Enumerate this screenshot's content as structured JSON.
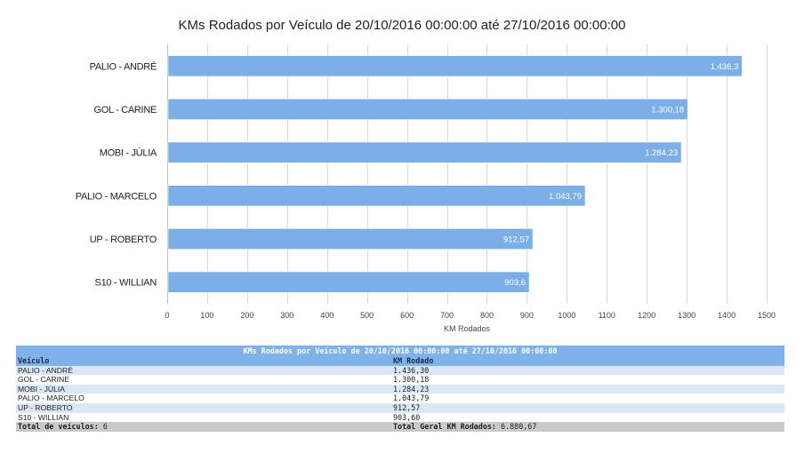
{
  "chart_data": {
    "type": "bar",
    "orientation": "horizontal",
    "title": "KMs Rodados por Veículo de 20/10/2016 00:00:00 até 27/10/2016 00:00:00",
    "categories": [
      "PALIO - ANDRÉ",
      "GOL - CARINE",
      "MOBI - JÚLIA",
      "PALIO - MARCELO",
      "UP - ROBERTO",
      "S10 - WILLIAN"
    ],
    "values": [
      1436.3,
      1300.18,
      1284.23,
      1043.79,
      912.57,
      903.6
    ],
    "data_labels": [
      "1.436,3",
      "1.300,18",
      "1.284,23",
      "1.043,79",
      "912,57",
      "903,6"
    ],
    "xlabel": "KM Rodados",
    "ylabel": "",
    "xlim": [
      0,
      1500
    ],
    "xticks": [
      0,
      100,
      200,
      300,
      400,
      500,
      600,
      700,
      800,
      900,
      1000,
      1100,
      1200,
      1300,
      1400,
      1500
    ],
    "grid": true,
    "bar_color": "#7cafe8",
    "legend": "none"
  },
  "table": {
    "caption": "KMs Rodados por Veículo de 20/10/2016 00:00:00 até 27/10/2016 00:00:00",
    "headers": [
      "Veículo",
      "KM Rodado"
    ],
    "rows": [
      [
        "PALIO - ANDRÉ",
        "1.436,30"
      ],
      [
        "GOL - CARINE",
        "1.300,18"
      ],
      [
        "MOBI - JÚLIA",
        "1.284,23"
      ],
      [
        "PALIO - MARCELO",
        "1.043,79"
      ],
      [
        "UP - ROBERTO",
        "912,57"
      ],
      [
        "S10 - WILLIAN",
        "903,60"
      ]
    ],
    "footer": {
      "count_label": "Total de veículos:",
      "count_value": "6",
      "total_label": "Total Geral KM Rodados:",
      "total_value": "6.880,67"
    },
    "colors": {
      "header_bg": "#7fb1ea",
      "row_alt_bg": "#dbe7f6",
      "footer_bg": "#c9c9c9"
    }
  }
}
